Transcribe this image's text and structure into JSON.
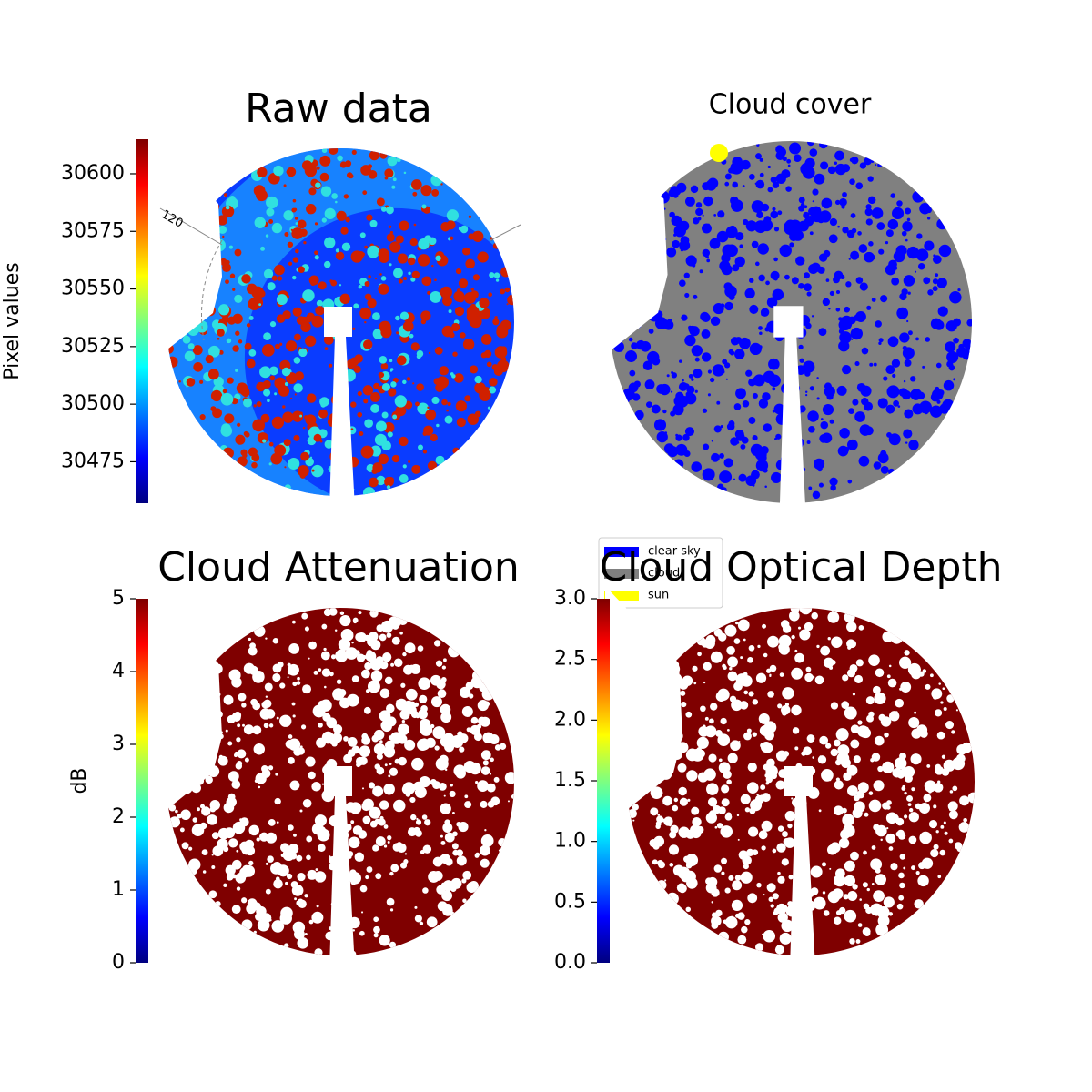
{
  "chart_data": [
    {
      "type": "image",
      "title": "Raw data",
      "ylabel": "Pixel values",
      "colormap": "jet",
      "ylim": [
        30457,
        30615
      ],
      "yticks": [
        30475,
        30500,
        30525,
        30550,
        30575,
        30600
      ],
      "annotations": [
        "120"
      ]
    },
    {
      "type": "image",
      "title": "Cloud cover",
      "legend": [
        {
          "name": "clear sky",
          "color": "#0000ff"
        },
        {
          "name": "cloud",
          "color": "#808080"
        },
        {
          "name": "sun",
          "color": "#ffff00"
        }
      ]
    },
    {
      "type": "image",
      "title": "Cloud Attenuation",
      "ylabel": "dB",
      "colormap": "jet",
      "ylim": [
        0,
        5
      ],
      "yticks": [
        0,
        1,
        2,
        3,
        4,
        5
      ]
    },
    {
      "type": "image",
      "title": "Cloud Optical Depth",
      "colormap": "jet",
      "ylim": [
        0,
        3
      ],
      "yticks": [
        {
          "value": 0,
          "label": "0.0"
        },
        0.5,
        {
          "value": 1,
          "label": "1.0"
        },
        1.5,
        {
          "value": 2,
          "label": "2.0"
        },
        2.5,
        {
          "value": 3,
          "label": "3.0"
        }
      ]
    }
  ]
}
